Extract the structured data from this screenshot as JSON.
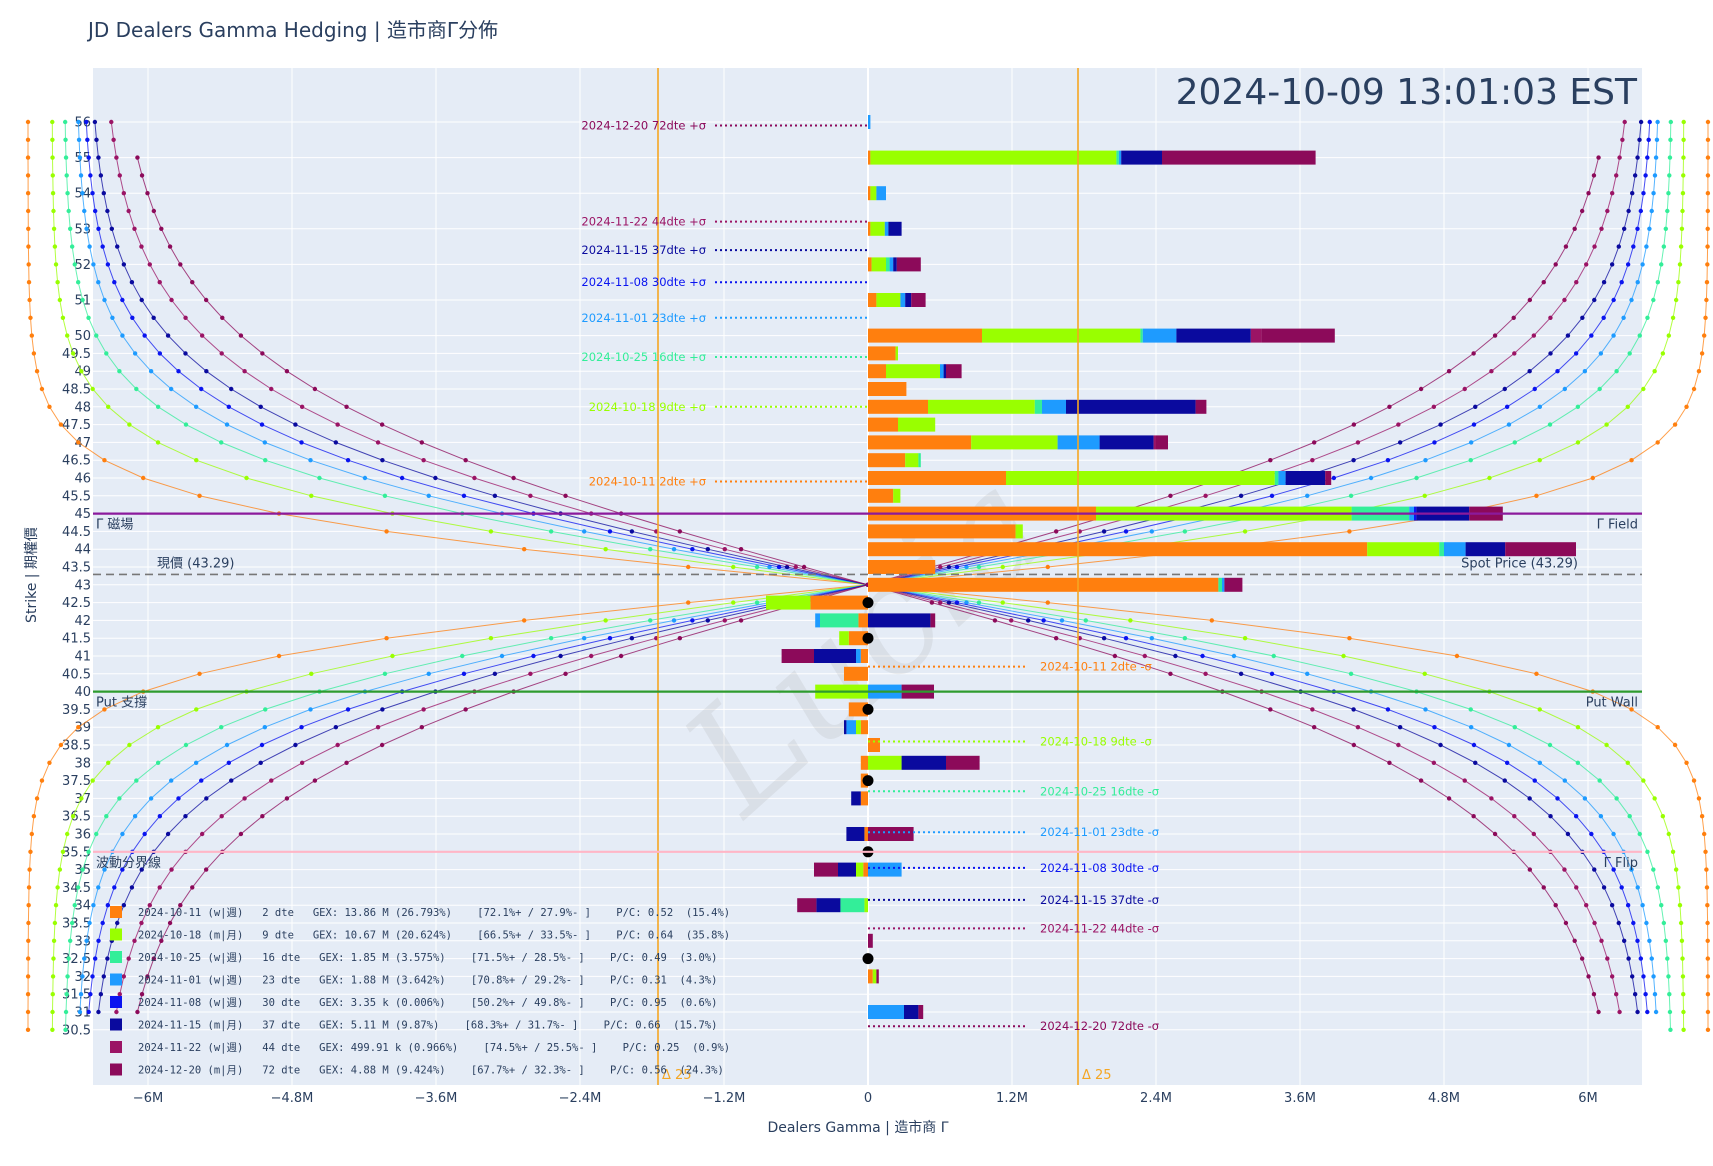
{
  "title": "JD Dealers Gamma Hedging | 造市商Γ分佈",
  "timestamp": "2024-10-09 13:01:03 EST",
  "watermark": "Lucia",
  "chart_data": {
    "type": "bar",
    "orientation": "horizontal",
    "xlabel": "Dealers Gamma | 造市商 Γ",
    "ylabel": "Strike | 期權價",
    "xlim": [
      -7600000,
      7600000
    ],
    "ylim": [
      30.0,
      56.5
    ],
    "x_ticks": [
      {
        "v": -6000000,
        "label": "−6M"
      },
      {
        "v": -4800000,
        "label": "−4.8M"
      },
      {
        "v": -3600000,
        "label": "−3.6M"
      },
      {
        "v": -2400000,
        "label": "−2.4M"
      },
      {
        "v": -1200000,
        "label": "−1.2M"
      },
      {
        "v": 0,
        "label": "0"
      },
      {
        "v": 1200000,
        "label": "1.2M"
      },
      {
        "v": 2400000,
        "label": "2.4M"
      },
      {
        "v": 3600000,
        "label": "3.6M"
      },
      {
        "v": 4800000,
        "label": "4.8M"
      },
      {
        "v": 6000000,
        "label": "6M"
      }
    ],
    "strikes": [
      56,
      55,
      54,
      53,
      52,
      51,
      50,
      49.5,
      49,
      48.5,
      48,
      47.5,
      47,
      46.5,
      46,
      45.5,
      45,
      44.5,
      44,
      43.5,
      43,
      42.5,
      42,
      41.5,
      41,
      40.5,
      40,
      39.5,
      39,
      38.5,
      38,
      37.5,
      37,
      36.5,
      36,
      35.5,
      35,
      34.5,
      34,
      33.5,
      33,
      32.5,
      32,
      31.5,
      31,
      30.5
    ],
    "series": [
      {
        "name": "2024-10-11",
        "color": "#ff7f0e",
        "legend": "2024-10-11 (w|週)   2 dte   GEX: 13.86 M (26.793%)    [72.1%+ / 27.9%- ]    P/C: 0.52  (15.4%)"
      },
      {
        "name": "2024-10-18",
        "color": "#99ff00",
        "legend": "2024-10-18 (m|月)   9 dte   GEX: 10.67 M (20.624%)    [66.5%+ / 33.5%- ]    P/C: 0.64  (35.8%)"
      },
      {
        "name": "2024-10-25",
        "color": "#33ee99",
        "legend": "2024-10-25 (w|週)   16 dte   GEX: 1.85 M (3.575%)    [71.5%+ / 28.5%- ]    P/C: 0.49  (3.0%)"
      },
      {
        "name": "2024-11-01",
        "color": "#1e9bff",
        "legend": "2024-11-01 (w|週)   23 dte   GEX: 1.88 M (3.642%)    [70.8%+ / 29.2%- ]    P/C: 0.31  (4.3%)"
      },
      {
        "name": "2024-11-08",
        "color": "#0a14f0",
        "legend": "2024-11-08 (w|週)   30 dte   GEX: 3.35 k (0.006%)    [50.2%+ / 49.8%- ]    P/C: 0.95  (0.6%)"
      },
      {
        "name": "2024-11-15",
        "color": "#0a0a9e",
        "legend": "2024-11-15 (m|月)   37 dte   GEX: 5.11 M (9.87%)    [68.3%+ / 31.7%- ]    P/C: 0.66  (15.7%)"
      },
      {
        "name": "2024-11-22",
        "color": "#9b1465",
        "legend": "2024-11-22 (w|週)   44 dte   GEX: 499.91 k (0.966%)    [74.5%+ / 25.5%- ]    P/C: 0.25  (0.9%)"
      },
      {
        "name": "2024-12-20",
        "color": "#8c0a5a",
        "legend": "2024-12-20 (m|月)   72 dte   GEX: 4.88 M (9.424%)    [67.7%+ / 32.3%- ]    P/C: 0.56  (24.3%)"
      }
    ],
    "bars": [
      [
        56,
        0,
        0,
        0,
        20000,
        0,
        0,
        0,
        0
      ],
      [
        55,
        20000,
        2050000,
        20000,
        20000,
        0,
        340000,
        0,
        1280000
      ],
      [
        54,
        20000,
        50000,
        0,
        80000,
        0,
        0,
        0,
        0
      ],
      [
        53,
        20000,
        120000,
        0,
        30000,
        0,
        110000,
        0,
        0
      ],
      [
        52,
        30000,
        120000,
        30000,
        30000,
        0,
        30000,
        0,
        200000
      ],
      [
        51,
        70000,
        200000,
        0,
        40000,
        0,
        50000,
        0,
        120000
      ],
      [
        50,
        950000,
        1320000,
        20000,
        280000,
        0,
        620000,
        90000,
        610000
      ],
      [
        49.5,
        230000,
        20000,
        0,
        0,
        0,
        0,
        0,
        0
      ],
      [
        49,
        150000,
        450000,
        0,
        30000,
        0,
        20000,
        0,
        130000
      ],
      [
        48.5,
        320000,
        0,
        0,
        0,
        0,
        0,
        0,
        0
      ],
      [
        48,
        500000,
        890000,
        60000,
        200000,
        0,
        1080000,
        0,
        90000
      ],
      [
        47.5,
        250000,
        310000,
        0,
        0,
        0,
        0,
        0,
        0
      ],
      [
        47,
        860000,
        720000,
        0,
        350000,
        0,
        450000,
        20000,
        100000
      ],
      [
        46.5,
        310000,
        110000,
        20000,
        0,
        0,
        0,
        0,
        0
      ],
      [
        46,
        1150000,
        2240000,
        30000,
        60000,
        0,
        330000,
        0,
        50000
      ],
      [
        45.5,
        210000,
        60000,
        0,
        0,
        0,
        0,
        0,
        0
      ],
      [
        45,
        1900000,
        2130000,
        480000,
        40000,
        20000,
        440000,
        0,
        280000
      ],
      [
        44.5,
        1230000,
        60000,
        0,
        0,
        0,
        0,
        0,
        0
      ],
      [
        44,
        4160000,
        600000,
        40000,
        180000,
        0,
        330000,
        0,
        590000
      ],
      [
        43.5,
        560000,
        0,
        0,
        0,
        0,
        0,
        0,
        0
      ],
      [
        43,
        2920000,
        0,
        30000,
        20000,
        0,
        0,
        0,
        150000
      ],
      [
        42.5,
        -480000,
        -370000,
        0,
        0,
        0,
        0,
        0,
        0
      ],
      [
        42,
        -80000,
        0,
        -320000,
        -40000,
        0,
        520000,
        0,
        40000
      ],
      [
        41.5,
        -160000,
        -80000,
        0,
        0,
        0,
        0,
        0,
        0
      ],
      [
        41,
        -60000,
        0,
        0,
        -40000,
        0,
        -350000,
        0,
        -270000
      ],
      [
        40.5,
        -200000,
        0,
        0,
        0,
        0,
        0,
        0,
        0
      ],
      [
        40,
        0,
        -440000,
        0,
        280000,
        0,
        0,
        0,
        270000
      ],
      [
        39.5,
        -160000,
        0,
        0,
        0,
        0,
        0,
        0,
        0
      ],
      [
        39,
        -60000,
        -40000,
        0,
        -80000,
        0,
        -20000,
        0,
        0
      ],
      [
        38.5,
        100000,
        0,
        0,
        0,
        0,
        0,
        0,
        0
      ],
      [
        38,
        -60000,
        280000,
        0,
        0,
        0,
        370000,
        0,
        280000
      ],
      [
        37.5,
        -60000,
        0,
        0,
        0,
        0,
        0,
        0,
        0
      ],
      [
        37,
        -60000,
        0,
        0,
        0,
        0,
        -80000,
        0,
        0
      ],
      [
        36.5,
        0,
        0,
        0,
        0,
        0,
        0,
        0,
        0
      ],
      [
        36,
        -30000,
        0,
        0,
        0,
        0,
        -150000,
        0,
        380000
      ],
      [
        35.5,
        0,
        0,
        0,
        0,
        0,
        0,
        0,
        0
      ],
      [
        35,
        -40000,
        -60000,
        0,
        280000,
        0,
        -150000,
        0,
        -200000
      ],
      [
        34.5,
        0,
        0,
        0,
        0,
        0,
        0,
        0,
        0
      ],
      [
        34,
        0,
        -30000,
        -200000,
        0,
        0,
        -200000,
        0,
        -160000
      ],
      [
        33.5,
        0,
        0,
        0,
        0,
        0,
        0,
        0,
        0
      ],
      [
        33,
        0,
        0,
        0,
        0,
        0,
        0,
        0,
        40000
      ],
      [
        32.5,
        0,
        0,
        0,
        0,
        0,
        0,
        0,
        0
      ],
      [
        32,
        40000,
        30000,
        0,
        0,
        0,
        0,
        0,
        20000
      ],
      [
        31.5,
        0,
        0,
        0,
        0,
        0,
        0,
        0,
        0
      ],
      [
        31,
        0,
        0,
        0,
        300000,
        0,
        120000,
        0,
        40000
      ],
      [
        30.5,
        0,
        0,
        0,
        0,
        0,
        0,
        0,
        0
      ]
    ],
    "reference_lines": [
      {
        "label_left": "Γ 磁場",
        "label_right": "Γ Field",
        "y": 45,
        "color": "#8b1a9c"
      },
      {
        "label_left": "現價 (43.29)",
        "label_right": "Spot Price (43.29)",
        "y": 43.29,
        "color": "#777777"
      },
      {
        "label_left": "Put 支撐",
        "label_right": "Put Wall",
        "y": 40,
        "color": "#2e9b2e"
      },
      {
        "label_left": "波動分界線",
        "label_right": "Γ Flip",
        "y": 35.5,
        "color": "#ffb6c6"
      }
    ],
    "delta_lines": [
      {
        "x": -1750000,
        "label": "Δ 25"
      },
      {
        "x": 1750000,
        "label": "Δ 25"
      }
    ],
    "sigma_markers": [
      {
        "label": "2024-12-20 72dte +σ",
        "y": 55.9,
        "color": "#8c0a5a"
      },
      {
        "label": "2024-11-22 44dte +σ",
        "y": 53.2,
        "color": "#9b1465"
      },
      {
        "label": "2024-11-15 37dte +σ",
        "y": 52.4,
        "color": "#0a0a9e"
      },
      {
        "label": "2024-11-08 30dte +σ",
        "y": 51.5,
        "color": "#0a14f0"
      },
      {
        "label": "2024-11-01 23dte +σ",
        "y": 50.5,
        "color": "#1e9bff"
      },
      {
        "label": "2024-10-25 16dte +σ",
        "y": 49.4,
        "color": "#33ee99"
      },
      {
        "label": "2024-10-18 9dte +σ",
        "y": 48.0,
        "color": "#99ff00"
      },
      {
        "label": "2024-10-11 2dte +σ",
        "y": 45.9,
        "color": "#ff7f0e"
      },
      {
        "label": "2024-10-11 2dte -σ",
        "y": 40.7,
        "color": "#ff7f0e"
      },
      {
        "label": "2024-10-18 9dte -σ",
        "y": 38.6,
        "color": "#99ff00"
      },
      {
        "label": "2024-10-25 16dte -σ",
        "y": 37.2,
        "color": "#33ee99"
      },
      {
        "label": "2024-11-01 23dte -σ",
        "y": 36.05,
        "color": "#1e9bff"
      },
      {
        "label": "2024-11-08 30dte -σ",
        "y": 35.05,
        "color": "#0a14f0"
      },
      {
        "label": "2024-11-15 37dte -σ",
        "y": 34.15,
        "color": "#0a0a9e"
      },
      {
        "label": "2024-11-22 44dte -σ",
        "y": 33.35,
        "color": "#9b1465"
      },
      {
        "label": "2024-12-20 72dte -σ",
        "y": 30.6,
        "color": "#8c0a5a"
      }
    ],
    "zero_gamma_points": [
      42.5,
      41.5,
      39.5,
      37.5,
      35.5,
      32.5
    ],
    "profile_curves": [
      {
        "name": "2024-10-11",
        "center": 43.0,
        "amp": 7000000,
        "width": 2.3,
        "top": 56,
        "bottom": 30.5
      },
      {
        "name": "2024-10-18",
        "center": 43.0,
        "amp": 6800000,
        "width": 3.0,
        "top": 56,
        "bottom": 30.5
      },
      {
        "name": "2024-10-25",
        "center": 43.0,
        "amp": 6700000,
        "width": 3.6,
        "top": 56,
        "bottom": 30.5
      },
      {
        "name": "2024-11-01",
        "center": 43.0,
        "amp": 6600000,
        "width": 4.0,
        "top": 56,
        "bottom": 31
      },
      {
        "name": "2024-11-08",
        "center": 43.0,
        "amp": 6550000,
        "width": 4.4,
        "top": 56,
        "bottom": 31
      },
      {
        "name": "2024-11-15",
        "center": 43.0,
        "amp": 6500000,
        "width": 4.8,
        "top": 56,
        "bottom": 31
      },
      {
        "name": "2024-11-22",
        "center": 43.0,
        "amp": 6400000,
        "width": 5.3,
        "top": 56,
        "bottom": 31
      },
      {
        "name": "2024-12-20",
        "center": 43.0,
        "amp": 6300000,
        "width": 5.9,
        "top": 55,
        "bottom": 31
      }
    ]
  }
}
